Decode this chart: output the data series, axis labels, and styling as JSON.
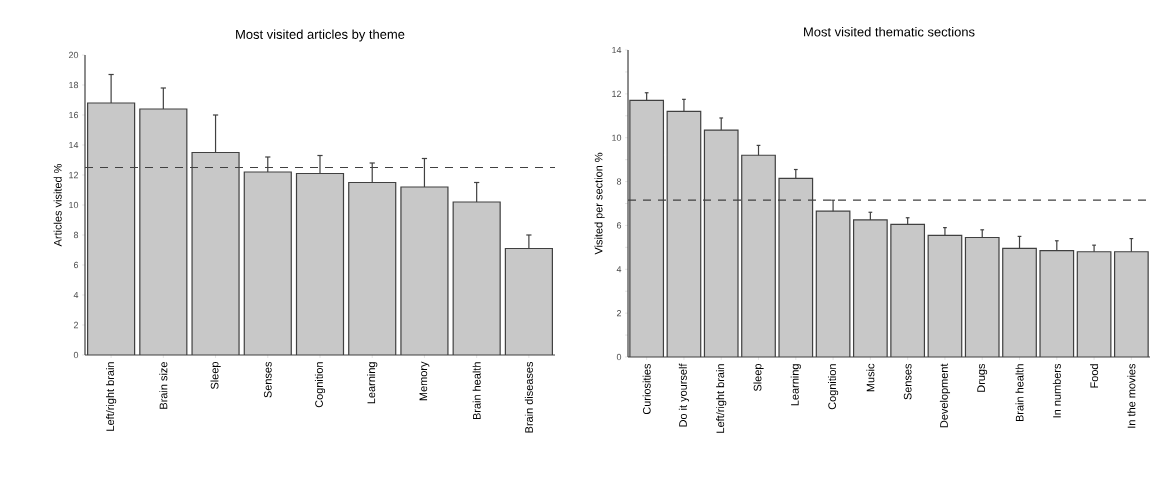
{
  "chart_data": [
    {
      "type": "bar",
      "title": "Most visited articles by theme",
      "ylabel": "Articles visited %",
      "categories": [
        "Left/right brain",
        "Brain size",
        "Sleep",
        "Senses",
        "Cognition",
        "Learning",
        "Memory",
        "Brain health",
        "Brain diseases"
      ],
      "values": [
        16.8,
        16.4,
        13.5,
        12.2,
        12.1,
        11.5,
        11.2,
        10.2,
        7.1
      ],
      "errors": [
        [
          16.8,
          18.7
        ],
        [
          16.4,
          17.8
        ],
        [
          13.5,
          16.0
        ],
        [
          12.2,
          13.2
        ],
        [
          12.1,
          13.3
        ],
        [
          11.5,
          12.8
        ],
        [
          11.2,
          13.1
        ],
        [
          10.2,
          11.5
        ],
        [
          7.1,
          8.0
        ]
      ],
      "color": "#c8c8c8",
      "ylim": [
        0,
        20
      ],
      "yticks": [
        0,
        2,
        4,
        6,
        8,
        10,
        12,
        14,
        16,
        18,
        20
      ],
      "ref_lines": [
        {
          "axis": "y",
          "value": 12.5,
          "line_style": "dashed"
        }
      ]
    },
    {
      "type": "bar",
      "title": "Most visited thematic sections",
      "ylabel": "Visited per section %",
      "categories": [
        "Curiosities",
        "Do it yourself",
        "Left/right brain",
        "Sleep",
        "Learning",
        "Cognition",
        "Music",
        "Senses",
        "Development",
        "Drugs",
        "Brain health",
        "In numbers",
        "Food",
        "In the movies"
      ],
      "values": [
        11.7,
        11.2,
        10.35,
        9.2,
        8.15,
        6.65,
        6.25,
        6.05,
        5.55,
        5.45,
        4.95,
        4.85,
        4.8,
        4.8
      ],
      "errors": [
        [
          11.7,
          12.05
        ],
        [
          11.2,
          11.75
        ],
        [
          10.35,
          10.9
        ],
        [
          9.2,
          9.65
        ],
        [
          8.15,
          8.55
        ],
        [
          6.65,
          7.15
        ],
        [
          6.25,
          6.6
        ],
        [
          6.05,
          6.35
        ],
        [
          5.55,
          5.9
        ],
        [
          5.45,
          5.8
        ],
        [
          4.95,
          5.5
        ],
        [
          4.85,
          5.3
        ],
        [
          4.8,
          5.1
        ],
        [
          4.8,
          5.4
        ]
      ],
      "color": "#c8c8c8",
      "ylim": [
        0,
        14
      ],
      "yticks": [
        0,
        {
          "value": 1,
          "label": null
        },
        2,
        {
          "value": 3,
          "label": null
        },
        4,
        {
          "value": 5,
          "label": null
        },
        6,
        {
          "value": 7,
          "label": null
        },
        8,
        {
          "value": 9,
          "label": null
        },
        10,
        {
          "value": 11,
          "label": null
        },
        12,
        {
          "value": 13,
          "label": null
        },
        14
      ],
      "ref_lines": [
        {
          "axis": "y",
          "value": 7.15,
          "line_style": "dashed"
        }
      ]
    }
  ]
}
